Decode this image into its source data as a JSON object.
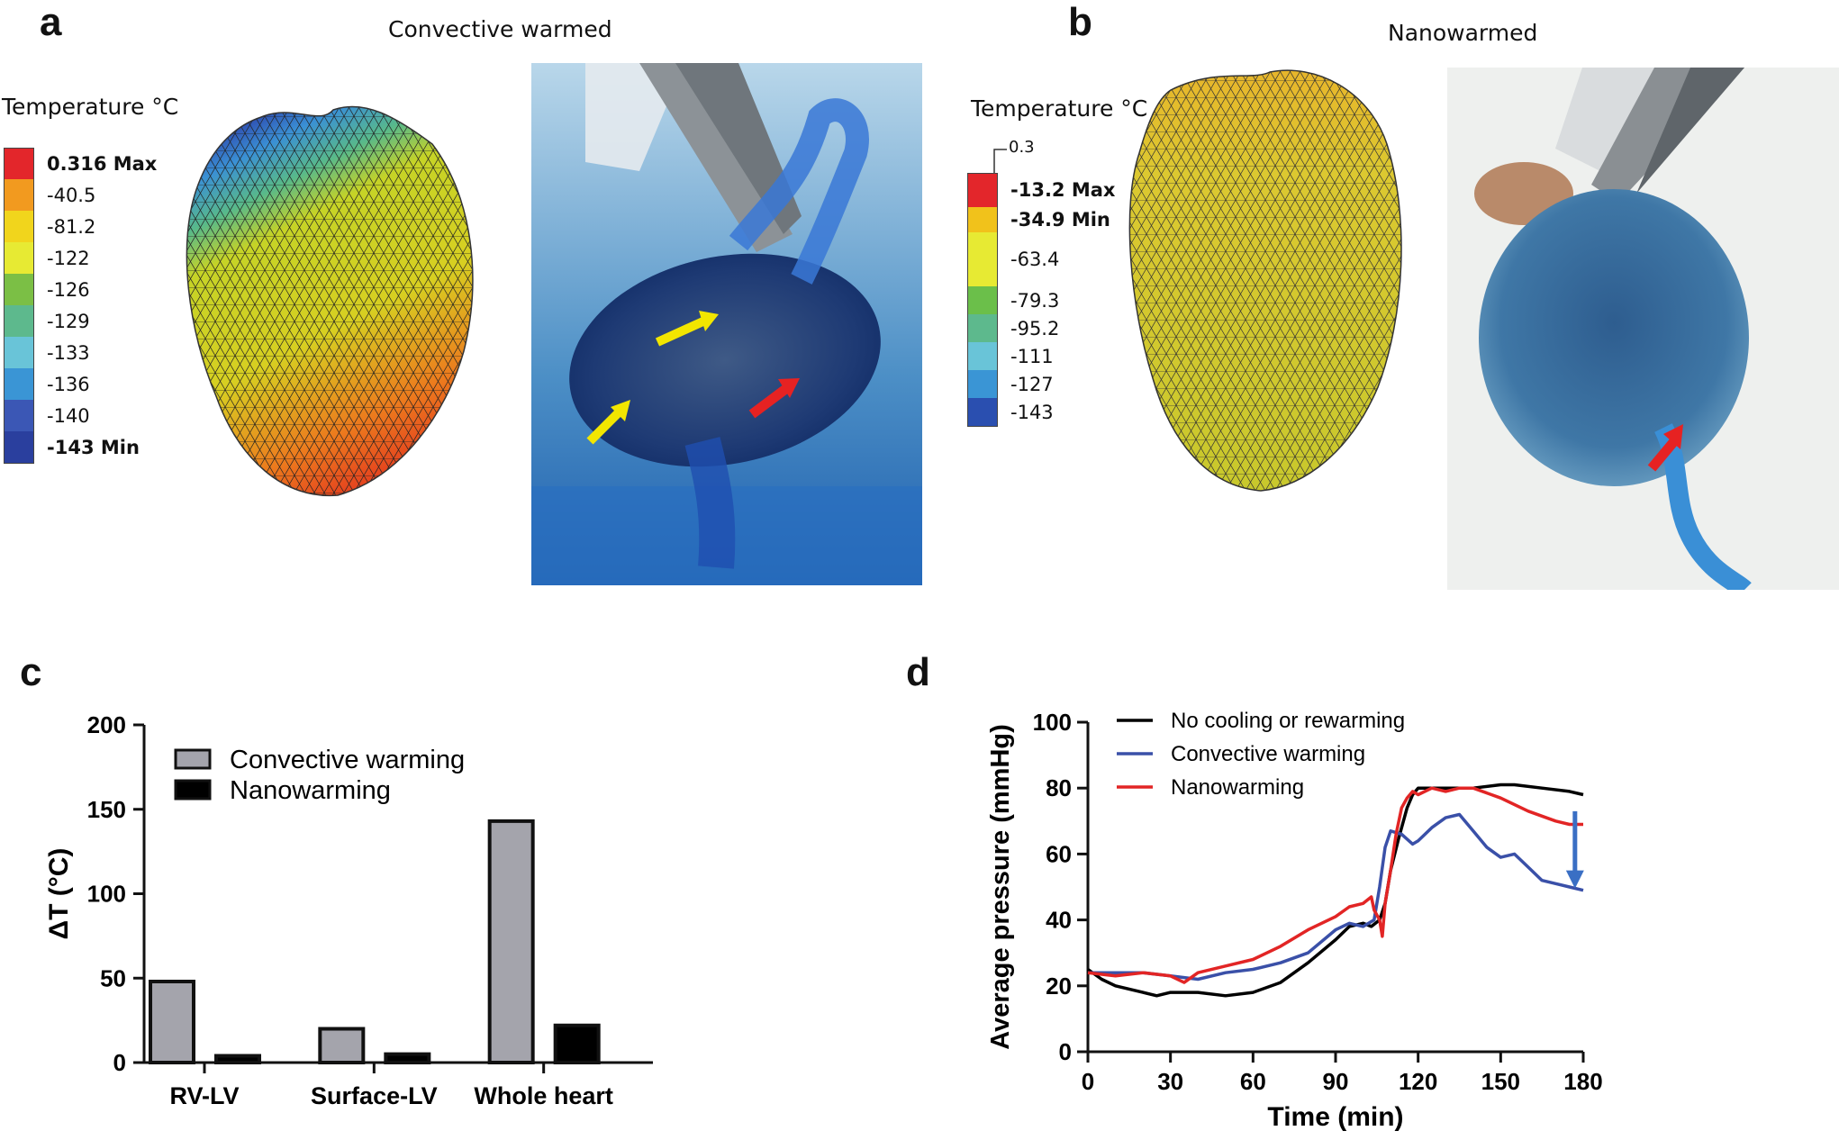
{
  "panels": {
    "a": {
      "letter": "a",
      "title": "Convective warmed",
      "legend_title": "Temperature °C",
      "legend": [
        {
          "label": "0.316 Max",
          "color": "#e3262b",
          "bold": true
        },
        {
          "label": "-40.5",
          "color": "#f29a1f",
          "bold": false
        },
        {
          "label": "-81.2",
          "color": "#f1d51c",
          "bold": false
        },
        {
          "label": "-122",
          "color": "#e7ea33",
          "bold": false
        },
        {
          "label": "-126",
          "color": "#7bbf45",
          "bold": false
        },
        {
          "label": "-129",
          "color": "#5db98d",
          "bold": false
        },
        {
          "label": "-133",
          "color": "#69c4d8",
          "bold": false
        },
        {
          "label": "-136",
          "color": "#3a95d5",
          "bold": false
        },
        {
          "label": "-140",
          "color": "#3b57b5",
          "bold": false
        },
        {
          "label": "-143 Min",
          "color": "#2a3f9e",
          "bold": true
        }
      ]
    },
    "b": {
      "letter": "b",
      "title": "Nanowarmed",
      "legend_title": "Temperature °C",
      "top_label": "0.3",
      "legend": [
        {
          "label": "-13.2 Max",
          "color": "#e3262b",
          "bold": true
        },
        {
          "label": "-34.9 Min",
          "color": "#f1c21b",
          "bold": true
        },
        {
          "label": "-63.4",
          "color": "#e7ea33",
          "bold": false
        },
        {
          "label": "-79.3",
          "color": "#6bbf4a",
          "bold": false
        },
        {
          "label": "-95.2",
          "color": "#5db98d",
          "bold": false
        },
        {
          "label": "-111",
          "color": "#69c4d8",
          "bold": false
        },
        {
          "label": "-127",
          "color": "#3a95d5",
          "bold": false
        },
        {
          "label": "-143",
          "color": "#2a4fb0",
          "bold": false
        }
      ]
    },
    "c": {
      "letter": "c"
    },
    "d": {
      "letter": "d"
    }
  },
  "chart_data": [
    {
      "type": "bar",
      "categories": [
        "RV-LV",
        "Surface-LV",
        "Whole heart"
      ],
      "series": [
        {
          "name": "Convective warming",
          "color": "#a4a4ac",
          "values": [
            48,
            20,
            143
          ]
        },
        {
          "name": "Nanowarming",
          "color": "#000000",
          "values": [
            4,
            5,
            22
          ]
        }
      ],
      "title": "",
      "xlabel": "",
      "ylabel": "ΔT (°C)",
      "ylim": [
        0,
        200
      ],
      "yticks": [
        "0",
        "50",
        "100",
        "150",
        "200"
      ],
      "legend_position": "top-left"
    },
    {
      "type": "line",
      "xlabel": "Time (min)",
      "ylabel": "Average pressure (mmHg)",
      "xlim": [
        0,
        180
      ],
      "ylim": [
        0,
        100
      ],
      "xticks": [
        "0",
        "30",
        "60",
        "90",
        "120",
        "150",
        "180"
      ],
      "yticks": [
        "0",
        "20",
        "40",
        "60",
        "80",
        "100"
      ],
      "legend_position": "top-left",
      "series": [
        {
          "name": "No cooling or rewarming",
          "color": "#000000",
          "x": [
            0,
            5,
            10,
            20,
            25,
            30,
            40,
            50,
            60,
            70,
            80,
            90,
            95,
            100,
            103,
            106,
            108,
            110,
            113,
            116,
            118,
            120,
            125,
            130,
            140,
            150,
            155,
            165,
            175,
            180
          ],
          "y": [
            25,
            22,
            20,
            18,
            17,
            18,
            18,
            17,
            18,
            21,
            27,
            34,
            38,
            39,
            38,
            40,
            45,
            55,
            65,
            74,
            78,
            80,
            80,
            80,
            80,
            81,
            81,
            80,
            79,
            78
          ]
        },
        {
          "name": "Convective warming",
          "color": "#3a50a8",
          "x": [
            0,
            10,
            20,
            30,
            40,
            50,
            60,
            70,
            80,
            90,
            95,
            100,
            104,
            106,
            108,
            110,
            114,
            118,
            120,
            125,
            130,
            135,
            140,
            145,
            150,
            155,
            160,
            165,
            170,
            175,
            180
          ],
          "y": [
            24,
            24,
            24,
            23,
            22,
            24,
            25,
            27,
            30,
            37,
            39,
            38,
            40,
            50,
            62,
            67,
            66,
            63,
            64,
            68,
            71,
            72,
            67,
            62,
            59,
            60,
            56,
            52,
            51,
            50,
            49
          ]
        },
        {
          "name": "Nanowarming",
          "color": "#e22525",
          "x": [
            0,
            10,
            20,
            30,
            35,
            40,
            50,
            60,
            70,
            80,
            90,
            95,
            100,
            103,
            104,
            106,
            107,
            108,
            110,
            112,
            114,
            116,
            118,
            120,
            125,
            130,
            135,
            140,
            150,
            160,
            170,
            175,
            180
          ],
          "y": [
            24,
            23,
            24,
            23,
            21,
            24,
            26,
            28,
            32,
            37,
            41,
            44,
            45,
            47,
            43,
            40,
            35,
            45,
            55,
            66,
            74,
            77,
            79,
            78,
            80,
            79,
            80,
            80,
            77,
            73,
            70,
            69,
            69
          ]
        }
      ],
      "annotation_arrow": {
        "x": 177,
        "y_start": 73,
        "y_end": 49,
        "color": "#3a6fc4"
      }
    }
  ]
}
